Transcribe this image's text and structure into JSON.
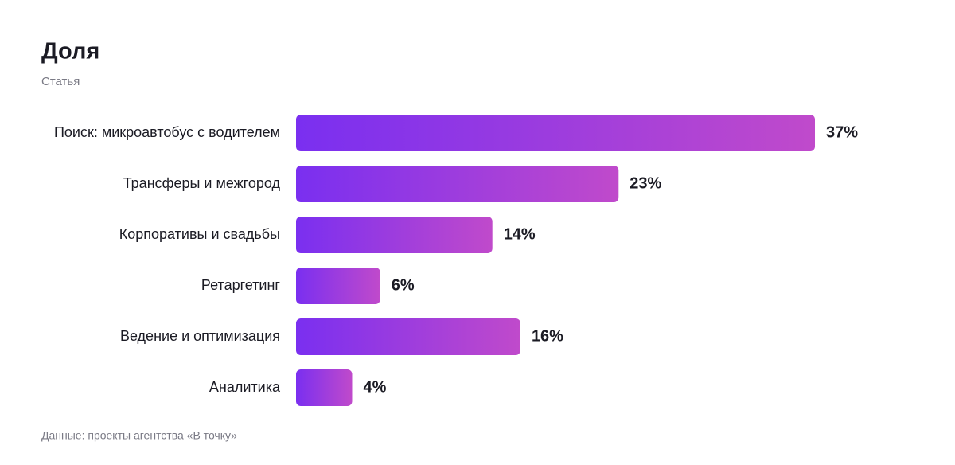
{
  "chart_data": {
    "type": "bar",
    "orientation": "horizontal",
    "title": "Доля",
    "subtitle": "Статья",
    "categories": [
      "Поиск: микроавтобус с водителем",
      "Трансферы и межгород",
      "Корпоративы и свадьбы",
      "Ретаргетинг",
      "Ведение и оптимизация",
      "Аналитика"
    ],
    "values": [
      37,
      23,
      14,
      6,
      16,
      4
    ],
    "value_labels": [
      "37%",
      "23%",
      "14%",
      "6%",
      "16%",
      "4%"
    ],
    "gradient": [
      "#7a2ff0",
      "#c04acb"
    ],
    "source": "Данные: проекты агентства «В точку»"
  }
}
